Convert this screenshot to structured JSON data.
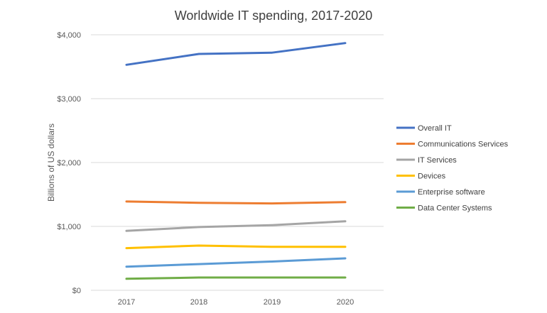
{
  "chart_data": {
    "type": "line",
    "title": "Worldwide IT spending, 2017-2020",
    "xlabel": "",
    "ylabel": "Billions of US dollars",
    "categories": [
      "2017",
      "2018",
      "2019",
      "2020"
    ],
    "ylim": [
      0,
      4000
    ],
    "yticks": [
      0,
      1000,
      2000,
      3000,
      4000
    ],
    "ytick_labels": [
      "$0",
      "$1,000",
      "$2,000",
      "$3,000",
      "$4,000"
    ],
    "grid": true,
    "legend_position": "right",
    "series": [
      {
        "name": "Overall IT",
        "color": "#4472C4",
        "values": [
          3530,
          3700,
          3720,
          3870
        ]
      },
      {
        "name": "Communications Services",
        "color": "#ED7D31",
        "values": [
          1390,
          1370,
          1360,
          1380
        ]
      },
      {
        "name": "IT Services",
        "color": "#A5A5A5",
        "values": [
          930,
          990,
          1020,
          1080
        ]
      },
      {
        "name": "Devices",
        "color": "#FFC000",
        "values": [
          660,
          700,
          680,
          680
        ]
      },
      {
        "name": "Enterprise software",
        "color": "#5B9BD5",
        "values": [
          370,
          410,
          450,
          500
        ]
      },
      {
        "name": "Data Center Systems",
        "color": "#70AD47",
        "values": [
          180,
          200,
          200,
          200
        ]
      }
    ]
  }
}
